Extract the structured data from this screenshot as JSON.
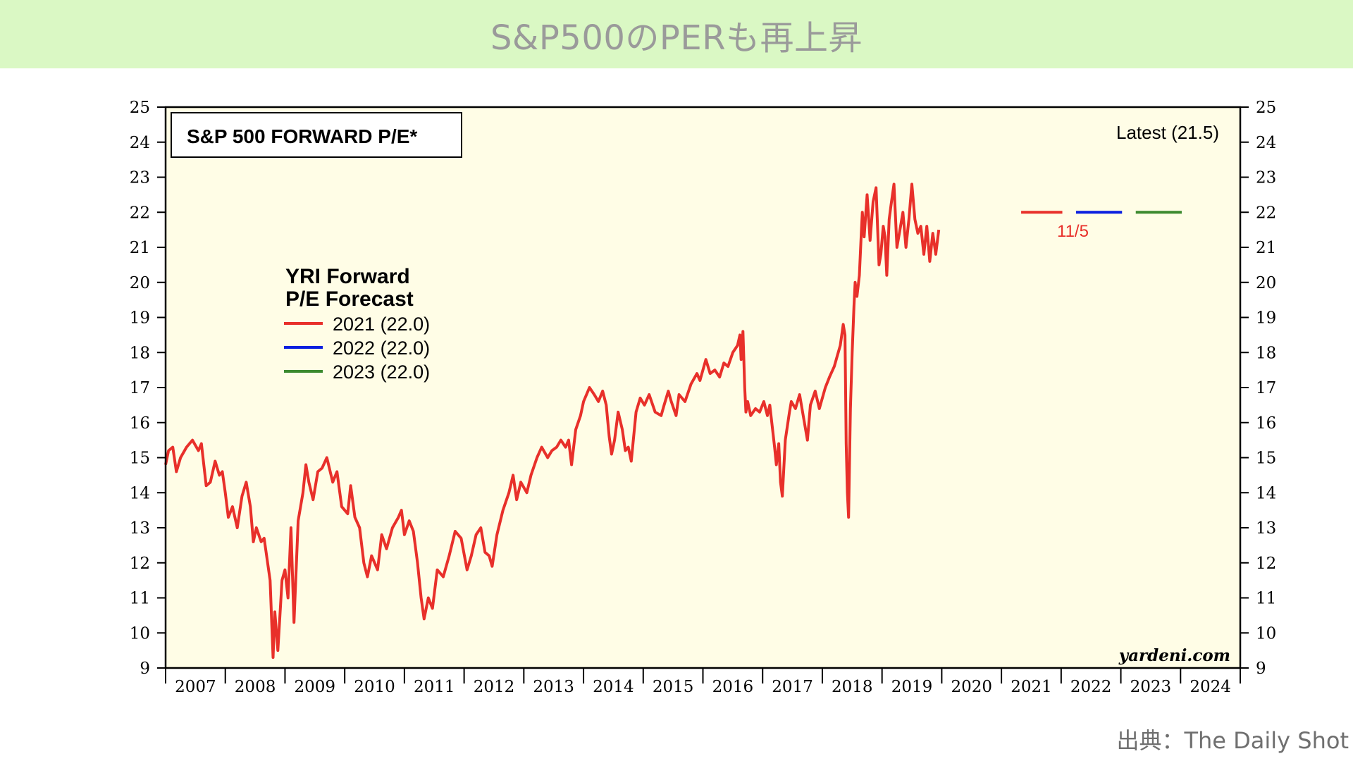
{
  "page": {
    "banner_title": "S&P500のPERも再上昇",
    "source": "出典：The Daily Shot"
  },
  "chart_data": {
    "type": "line",
    "title": "S&P 500 FORWARD P/E*",
    "latest_label": "Latest (21.5)",
    "credit": "yardeni.com",
    "annotation": "11/5",
    "ylim": [
      9,
      25
    ],
    "y_ticks": [
      9,
      10,
      11,
      12,
      13,
      14,
      15,
      16,
      17,
      18,
      19,
      20,
      21,
      22,
      23,
      24,
      25
    ],
    "x_range": [
      2006.5,
      2024.5
    ],
    "x_year_labels": [
      "2007",
      "2008",
      "2009",
      "2010",
      "2011",
      "2012",
      "2013",
      "2014",
      "2015",
      "2016",
      "2017",
      "2018",
      "2019",
      "2020",
      "2021",
      "2022",
      "2023",
      "2024"
    ],
    "legend": {
      "heading_line1": "YRI Forward",
      "heading_line2": "P/E Forecast",
      "entries": [
        {
          "label": "2021 (22.0)",
          "color": "#e8302a"
        },
        {
          "label": "2022 (22.0)",
          "color": "#0a1fe0"
        },
        {
          "label": "2023 (22.0)",
          "color": "#3c8a2e"
        }
      ]
    },
    "colors": {
      "series": "#e8302a",
      "plot_bg": "#fffde6",
      "forecast_2021": "#e8302a",
      "forecast_2022": "#0a1fe0",
      "forecast_2023": "#3c8a2e"
    },
    "forecast_segments": [
      {
        "name": "2021",
        "x": [
          2020.83,
          2021.52
        ],
        "y": 22.0
      },
      {
        "name": "2022",
        "x": [
          2021.75,
          2022.52
        ],
        "y": 22.0
      },
      {
        "name": "2023",
        "x": [
          2022.75,
          2023.52
        ],
        "y": 22.0
      }
    ],
    "series": [
      {
        "values": [
          [
            2006.5,
            14.8
          ],
          [
            2006.55,
            15.2
          ],
          [
            2006.62,
            15.3
          ],
          [
            2006.68,
            14.6
          ],
          [
            2006.75,
            15.0
          ],
          [
            2006.85,
            15.3
          ],
          [
            2006.95,
            15.5
          ],
          [
            2007.05,
            15.2
          ],
          [
            2007.1,
            15.4
          ],
          [
            2007.18,
            14.2
          ],
          [
            2007.25,
            14.3
          ],
          [
            2007.33,
            14.9
          ],
          [
            2007.4,
            14.5
          ],
          [
            2007.45,
            14.6
          ],
          [
            2007.5,
            14.0
          ],
          [
            2007.55,
            13.3
          ],
          [
            2007.62,
            13.6
          ],
          [
            2007.7,
            13.0
          ],
          [
            2007.78,
            13.9
          ],
          [
            2007.85,
            14.3
          ],
          [
            2007.92,
            13.6
          ],
          [
            2007.97,
            12.6
          ],
          [
            2008.02,
            13.0
          ],
          [
            2008.1,
            12.6
          ],
          [
            2008.15,
            12.7
          ],
          [
            2008.25,
            11.5
          ],
          [
            2008.3,
            9.3
          ],
          [
            2008.33,
            10.6
          ],
          [
            2008.38,
            9.5
          ],
          [
            2008.45,
            11.5
          ],
          [
            2008.5,
            11.8
          ],
          [
            2008.55,
            11.0
          ],
          [
            2008.6,
            13.0
          ],
          [
            2008.65,
            10.3
          ],
          [
            2008.72,
            13.2
          ],
          [
            2008.8,
            14.0
          ],
          [
            2008.85,
            14.8
          ],
          [
            2008.9,
            14.3
          ],
          [
            2008.97,
            13.8
          ],
          [
            2009.05,
            14.6
          ],
          [
            2009.12,
            14.7
          ],
          [
            2009.2,
            15.0
          ],
          [
            2009.3,
            14.3
          ],
          [
            2009.37,
            14.6
          ],
          [
            2009.45,
            13.6
          ],
          [
            2009.55,
            13.4
          ],
          [
            2009.6,
            14.2
          ],
          [
            2009.67,
            13.3
          ],
          [
            2009.75,
            13.0
          ],
          [
            2009.82,
            12.0
          ],
          [
            2009.88,
            11.6
          ],
          [
            2009.95,
            12.2
          ],
          [
            2010.05,
            11.8
          ],
          [
            2010.12,
            12.8
          ],
          [
            2010.2,
            12.4
          ],
          [
            2010.3,
            13.0
          ],
          [
            2010.4,
            13.3
          ],
          [
            2010.45,
            13.5
          ],
          [
            2010.5,
            12.8
          ],
          [
            2010.58,
            13.2
          ],
          [
            2010.65,
            12.9
          ],
          [
            2010.72,
            12.0
          ],
          [
            2010.78,
            11.0
          ],
          [
            2010.83,
            10.4
          ],
          [
            2010.9,
            11.0
          ],
          [
            2010.97,
            10.7
          ],
          [
            2011.05,
            11.8
          ],
          [
            2011.15,
            11.6
          ],
          [
            2011.25,
            12.2
          ],
          [
            2011.35,
            12.9
          ],
          [
            2011.45,
            12.7
          ],
          [
            2011.55,
            11.8
          ],
          [
            2011.62,
            12.2
          ],
          [
            2011.7,
            12.8
          ],
          [
            2011.78,
            13.0
          ],
          [
            2011.85,
            12.3
          ],
          [
            2011.92,
            12.2
          ],
          [
            2011.97,
            11.9
          ],
          [
            2012.05,
            12.8
          ],
          [
            2012.15,
            13.5
          ],
          [
            2012.25,
            14.0
          ],
          [
            2012.32,
            14.5
          ],
          [
            2012.38,
            13.8
          ],
          [
            2012.45,
            14.3
          ],
          [
            2012.55,
            14.0
          ],
          [
            2012.62,
            14.5
          ],
          [
            2012.72,
            15.0
          ],
          [
            2012.8,
            15.3
          ],
          [
            2012.9,
            15.0
          ],
          [
            2012.97,
            15.2
          ],
          [
            2013.05,
            15.3
          ],
          [
            2013.12,
            15.5
          ],
          [
            2013.2,
            15.3
          ],
          [
            2013.25,
            15.5
          ],
          [
            2013.3,
            14.8
          ],
          [
            2013.37,
            15.8
          ],
          [
            2013.45,
            16.2
          ],
          [
            2013.5,
            16.6
          ],
          [
            2013.6,
            17.0
          ],
          [
            2013.68,
            16.8
          ],
          [
            2013.75,
            16.6
          ],
          [
            2013.82,
            16.9
          ],
          [
            2013.88,
            16.5
          ],
          [
            2013.93,
            15.6
          ],
          [
            2013.97,
            15.1
          ],
          [
            2014.02,
            15.5
          ],
          [
            2014.08,
            16.3
          ],
          [
            2014.15,
            15.8
          ],
          [
            2014.2,
            15.2
          ],
          [
            2014.25,
            15.3
          ],
          [
            2014.3,
            14.9
          ],
          [
            2014.38,
            16.3
          ],
          [
            2014.45,
            16.7
          ],
          [
            2014.52,
            16.5
          ],
          [
            2014.6,
            16.8
          ],
          [
            2014.7,
            16.3
          ],
          [
            2014.8,
            16.2
          ],
          [
            2014.85,
            16.5
          ],
          [
            2014.92,
            16.9
          ],
          [
            2014.97,
            16.6
          ],
          [
            2015.05,
            16.2
          ],
          [
            2015.1,
            16.8
          ],
          [
            2015.2,
            16.6
          ],
          [
            2015.3,
            17.1
          ],
          [
            2015.4,
            17.4
          ],
          [
            2015.45,
            17.2
          ],
          [
            2015.55,
            17.8
          ],
          [
            2015.62,
            17.4
          ],
          [
            2015.7,
            17.5
          ],
          [
            2015.78,
            17.3
          ],
          [
            2015.85,
            17.7
          ],
          [
            2015.92,
            17.6
          ],
          [
            2016.0,
            18.0
          ],
          [
            2016.08,
            18.2
          ],
          [
            2016.12,
            18.5
          ],
          [
            2016.14,
            17.8
          ],
          [
            2016.17,
            18.6
          ],
          [
            2016.2,
            17.0
          ],
          [
            2016.22,
            16.3
          ],
          [
            2016.25,
            16.6
          ],
          [
            2016.3,
            16.2
          ],
          [
            2016.38,
            16.4
          ],
          [
            2016.45,
            16.3
          ],
          [
            2016.52,
            16.6
          ],
          [
            2016.58,
            16.2
          ],
          [
            2016.62,
            16.5
          ],
          [
            2016.7,
            15.3
          ],
          [
            2016.73,
            14.8
          ],
          [
            2016.77,
            15.4
          ],
          [
            2016.8,
            14.3
          ],
          [
            2016.83,
            13.9
          ],
          [
            2016.88,
            15.5
          ],
          [
            2016.95,
            16.3
          ],
          [
            2016.98,
            16.6
          ],
          [
            2017.05,
            16.4
          ],
          [
            2017.12,
            16.8
          ],
          [
            2017.18,
            16.2
          ],
          [
            2017.25,
            15.5
          ],
          [
            2017.3,
            16.5
          ],
          [
            2017.38,
            16.9
          ],
          [
            2017.45,
            16.4
          ],
          [
            2017.55,
            17.0
          ],
          [
            2017.62,
            17.3
          ],
          [
            2017.7,
            17.6
          ],
          [
            2017.75,
            17.9
          ],
          [
            2017.8,
            18.2
          ],
          [
            2017.85,
            18.8
          ],
          [
            2017.88,
            18.5
          ],
          [
            2017.9,
            15.4
          ],
          [
            2017.92,
            14.0
          ],
          [
            2017.94,
            13.3
          ],
          [
            2017.97,
            16.4
          ],
          [
            2018.0,
            18.0
          ],
          [
            2018.03,
            19.3
          ],
          [
            2018.05,
            20.0
          ],
          [
            2018.08,
            19.6
          ],
          [
            2018.12,
            20.2
          ],
          [
            2018.15,
            21.3
          ],
          [
            2018.17,
            22.0
          ],
          [
            2018.2,
            21.3
          ],
          [
            2018.25,
            22.5
          ],
          [
            2018.3,
            21.2
          ],
          [
            2018.35,
            22.3
          ],
          [
            2018.4,
            22.7
          ],
          [
            2018.45,
            20.5
          ],
          [
            2018.48,
            20.8
          ],
          [
            2018.52,
            21.6
          ],
          [
            2018.55,
            21.3
          ],
          [
            2018.58,
            20.2
          ],
          [
            2018.62,
            21.8
          ],
          [
            2018.65,
            22.2
          ],
          [
            2018.7,
            22.8
          ],
          [
            2018.75,
            21.0
          ],
          [
            2018.8,
            21.5
          ],
          [
            2018.85,
            22.0
          ],
          [
            2018.9,
            21.0
          ],
          [
            2018.95,
            21.8
          ],
          [
            2019.0,
            22.8
          ],
          [
            2019.05,
            21.8
          ],
          [
            2019.1,
            21.4
          ],
          [
            2019.15,
            21.6
          ],
          [
            2019.2,
            20.8
          ],
          [
            2019.25,
            21.6
          ],
          [
            2019.3,
            20.6
          ],
          [
            2019.35,
            21.4
          ],
          [
            2019.4,
            20.8
          ],
          [
            2019.45,
            21.5
          ]
        ]
      }
    ]
  }
}
